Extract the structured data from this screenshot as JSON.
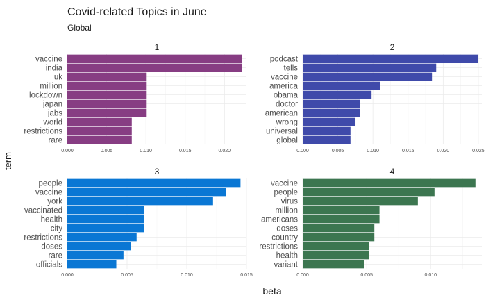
{
  "chart_data": {
    "type": "bar",
    "orientation": "horizontal",
    "title": "Covid-related Topics in June",
    "subtitle": "Global",
    "xlabel": "beta",
    "ylabel": "term",
    "grid": true,
    "legend": "none",
    "facets": [
      {
        "label": "1",
        "color": "#873D83",
        "xlim": [
          0,
          0.0228
        ],
        "xticks": [
          "0.000",
          "0.005",
          "0.010",
          "0.015",
          "0.020"
        ],
        "categories": [
          "vaccine",
          "india",
          "uk",
          "million",
          "lockdown",
          "japan",
          "jabs",
          "world",
          "restrictions",
          "rare"
        ],
        "values": [
          0.0222,
          0.0222,
          0.0101,
          0.0101,
          0.0101,
          0.0101,
          0.0101,
          0.0082,
          0.0082,
          0.0082
        ]
      },
      {
        "label": "2",
        "color": "#3F4AAA",
        "xlim": [
          0,
          0.0255
        ],
        "xticks": [
          "0.000",
          "0.005",
          "0.010",
          "0.015",
          "0.020",
          "0.025"
        ],
        "categories": [
          "podcast",
          "tells",
          "vaccine",
          "america",
          "obama",
          "doctor",
          "american",
          "wrong",
          "universal",
          "global"
        ],
        "values": [
          0.025,
          0.019,
          0.0184,
          0.011,
          0.0098,
          0.0082,
          0.0082,
          0.0075,
          0.0068,
          0.0068
        ]
      },
      {
        "label": "3",
        "color": "#0A77D4",
        "xlim": [
          0,
          0.015
        ],
        "xticks": [
          "0.000",
          "0.005",
          "0.010",
          "0.015"
        ],
        "categories": [
          "people",
          "vaccine",
          "york",
          "vaccinated",
          "health",
          "city",
          "restrictions",
          "doses",
          "rare",
          "officials"
        ],
        "values": [
          0.0145,
          0.0133,
          0.0122,
          0.0064,
          0.0064,
          0.0064,
          0.0058,
          0.0053,
          0.0047,
          0.0041
        ]
      },
      {
        "label": "4",
        "color": "#3C7650",
        "xlim": [
          0,
          0.014
        ],
        "xticks": [
          "0.000",
          "0.005",
          "0.010"
        ],
        "categories": [
          "vaccine",
          "people",
          "virus",
          "million",
          "americans",
          "doses",
          "country",
          "restrictions",
          "health",
          "variant"
        ],
        "values": [
          0.0135,
          0.0103,
          0.009,
          0.006,
          0.006,
          0.0056,
          0.0056,
          0.0052,
          0.0052,
          0.0048
        ]
      }
    ]
  }
}
